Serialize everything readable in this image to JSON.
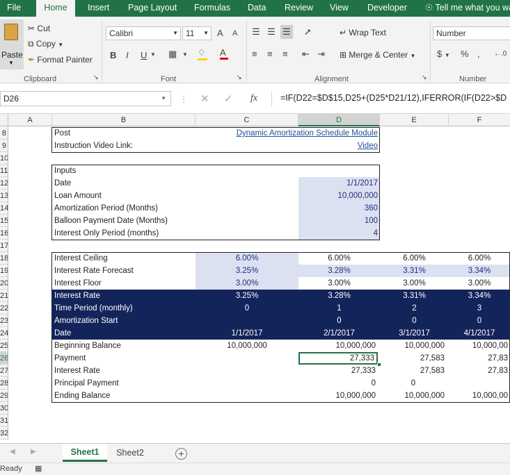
{
  "ribbon_tabs": [
    "File",
    "Home",
    "Insert",
    "Page Layout",
    "Formulas",
    "Data",
    "Review",
    "View",
    "Developer",
    "Tell me what you wa"
  ],
  "clipboard": {
    "paste": "Paste",
    "cut": "Cut",
    "copy": "Copy",
    "format_painter": "Format Painter",
    "group": "Clipboard"
  },
  "font": {
    "name": "Calibri",
    "size": "11",
    "bold": "B",
    "italic": "I",
    "underline": "U",
    "group": "Font",
    "grow": "A",
    "shrink": "A"
  },
  "alignment": {
    "wrap": "Wrap Text",
    "merge": "Merge & Center",
    "group": "Alignment"
  },
  "number": {
    "format": "Number",
    "currency": "$",
    "percent": "%",
    "comma": ",",
    "group": "Number"
  },
  "formula_bar": {
    "name_box": "D26",
    "fx": "fx",
    "formula": "=IF(D22=$D$15,D25+(D25*D21/12),IFERROR(IF(D22>$D"
  },
  "columns": [
    "A",
    "B",
    "C",
    "D",
    "E",
    "F"
  ],
  "rows": [
    "8",
    "9",
    "10",
    "11",
    "12",
    "13",
    "14",
    "15",
    "16",
    "17",
    "18",
    "19",
    "20",
    "21",
    "22",
    "23",
    "24",
    "25",
    "26",
    "27",
    "28",
    "29",
    "30",
    "31",
    "32"
  ],
  "sheet": {
    "post_label": "Post",
    "post_link": "Dynamic Amortization Schedule Module",
    "video_label": "Instruction Video Link:",
    "video_link": "Video",
    "inputs_title": "Inputs",
    "inputs": [
      {
        "label": "Date",
        "value": "1/1/2017"
      },
      {
        "label": "Loan Amount",
        "value": "10,000,000"
      },
      {
        "label": "Amortization Period (Months)",
        "value": "360"
      },
      {
        "label": "Balloon Payment Date (Months)",
        "value": "100"
      },
      {
        "label": "Interest Only Period (months)",
        "value": "4"
      }
    ],
    "schedule": [
      {
        "label": "Interest Ceiling",
        "c": "6.00%",
        "d": "6.00%",
        "e": "6.00%",
        "f": "6.00%"
      },
      {
        "label": "Interest Rate Forecast",
        "c": "3.25%",
        "d": "3.28%",
        "e": "3.31%",
        "f": "3.34%"
      },
      {
        "label": "Interest Floor",
        "c": "3.00%",
        "d": "3.00%",
        "e": "3.00%",
        "f": "3.00%"
      },
      {
        "label": "Interest Rate",
        "c": "3.25%",
        "d": "3.28%",
        "e": "3.31%",
        "f": "3.34%"
      },
      {
        "label": "Time Period (monthly)",
        "c": "0",
        "d": "1",
        "e": "2",
        "f": "3"
      },
      {
        "label": "Amortization Start",
        "c": "",
        "d": "0",
        "e": "0",
        "f": "0"
      },
      {
        "label": "Date",
        "c": "1/1/2017",
        "d": "2/1/2017",
        "e": "3/1/2017",
        "f": "4/1/2017"
      },
      {
        "label": "Beginning Balance",
        "c": "10,000,000",
        "d": "10,000,000",
        "e": "10,000,000",
        "f": "10,000,00"
      },
      {
        "label": "Payment",
        "c": "",
        "d": "27,333",
        "e": "27,583",
        "f": "27,83"
      },
      {
        "label": "Interest Rate",
        "c": "",
        "d": "27,333",
        "e": "27,583",
        "f": "27,83"
      },
      {
        "label": "Principal Payment",
        "c": "",
        "d": "0",
        "e": "0",
        "f": ""
      },
      {
        "label": "Ending Balance",
        "c": "",
        "d": "10,000,000",
        "e": "10,000,000",
        "f": "10,000,00"
      }
    ]
  },
  "sheet_tabs": [
    "Sheet1",
    "Sheet2"
  ],
  "add_sheet": "+",
  "status": "Ready",
  "colors": {
    "excel_green": "#217346",
    "navy": "#13245b",
    "input_blue": "#dce1f1"
  }
}
